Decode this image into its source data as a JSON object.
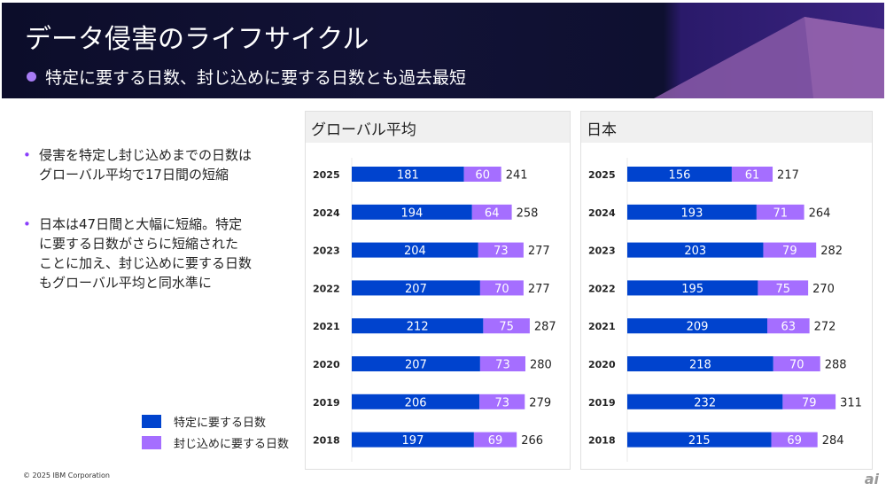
{
  "header": {
    "title": "データ侵害のライフサイクル",
    "subtitle": "特定に要する日数、封じ込めに要する日数とも過去最短"
  },
  "bullets": [
    {
      "lines": [
        "侵害を特定し封じ込めまでの日数は",
        "グローバル平均で17日間の短縮"
      ]
    },
    {
      "lines": [
        "日本は47日間と大幅に短縮。特定",
        "に要する日数がさらに短縮された",
        "ことに加え、封じ込めに要する日数",
        "もグローバル平均と同水準に"
      ]
    }
  ],
  "footer": {
    "copyright": "© 2025 IBM Corporation",
    "logo": "ai"
  },
  "colors": {
    "identify": "#0043ce",
    "contain": "#a56eff"
  },
  "chart_data": [
    {
      "type": "bar",
      "stacked": true,
      "orientation": "horizontal",
      "title": "グローバル平均",
      "categories": [
        "2025",
        "2024",
        "2023",
        "2022",
        "2021",
        "2020",
        "2019",
        "2018"
      ],
      "series": [
        {
          "name": "特定に要する日数",
          "values": [
            181,
            194,
            204,
            207,
            212,
            207,
            206,
            197
          ]
        },
        {
          "name": "封じ込めに要する日数",
          "values": [
            60,
            64,
            73,
            70,
            75,
            73,
            73,
            69
          ]
        }
      ],
      "totals": [
        241,
        258,
        277,
        277,
        287,
        280,
        279,
        266
      ]
    },
    {
      "type": "bar",
      "stacked": true,
      "orientation": "horizontal",
      "title": "日本",
      "categories": [
        "2025",
        "2024",
        "2023",
        "2022",
        "2021",
        "2020",
        "2019",
        "2018"
      ],
      "series": [
        {
          "name": "特定に要する日数",
          "values": [
            156,
            193,
            203,
            195,
            209,
            218,
            232,
            215
          ]
        },
        {
          "name": "封じ込めに要する日数",
          "values": [
            61,
            71,
            79,
            75,
            63,
            70,
            79,
            69
          ]
        }
      ],
      "totals": [
        217,
        264,
        282,
        270,
        272,
        288,
        311,
        284
      ]
    }
  ]
}
